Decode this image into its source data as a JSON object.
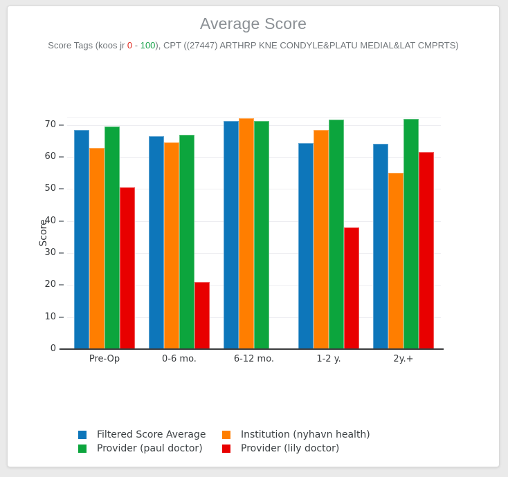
{
  "header": {
    "title": "Average Score",
    "subtitle_parts": {
      "prefix": "Score Tags (koos jr ",
      "range_min": "0",
      "range_sep": " - ",
      "range_max": "100",
      "suffix": "), CPT ((27447) ARTHRP KNE CONDYLE&PLATU MEDIAL&LAT CMPRTS)"
    },
    "range_min_color": "#e0281e",
    "range_max_color": "#18a24a",
    "title_color": "#8b9095",
    "subtitle_color": "#72777b"
  },
  "chart_data": {
    "type": "bar",
    "title": "Average Score",
    "subtitle": "Score Tags (koos jr 0 - 100), CPT ((27447) ARTHRP KNE CONDYLE&PLATU MEDIAL&LAT CMPRTS)",
    "categories": [
      "Pre-Op",
      "0-6 mo.",
      "6-12 mo.",
      "1-2 y.",
      "2y.+"
    ],
    "series": [
      {
        "name": "Filtered Score Average",
        "color": "#0d76ba",
        "values": [
          68.5,
          66.5,
          71.3,
          64.2,
          64.1
        ]
      },
      {
        "name": "Institution (nyhavn health)",
        "color": "#ff7e00",
        "values": [
          62.8,
          64.6,
          72.0,
          68.3,
          55.0
        ]
      },
      {
        "name": "Provider (paul doctor)",
        "color": "#0ca53d",
        "values": [
          69.5,
          66.8,
          71.3,
          71.7,
          71.9
        ]
      },
      {
        "name": "Provider (lily doctor)",
        "color": "#e80000",
        "values": [
          50.5,
          21.0,
          null,
          37.9,
          61.4
        ]
      }
    ],
    "xlabel": "",
    "ylabel": "Score",
    "yticks": [
      0,
      10,
      20,
      30,
      40,
      50,
      60,
      70
    ],
    "ylim": [
      0,
      72.5
    ],
    "grid": true,
    "legend_position": "bottom",
    "legend_order_row_major": [
      "Filtered Score Average",
      "Institution (nyhavn health)",
      "Provider (paul doctor)",
      "Provider (lily doctor)"
    ]
  }
}
